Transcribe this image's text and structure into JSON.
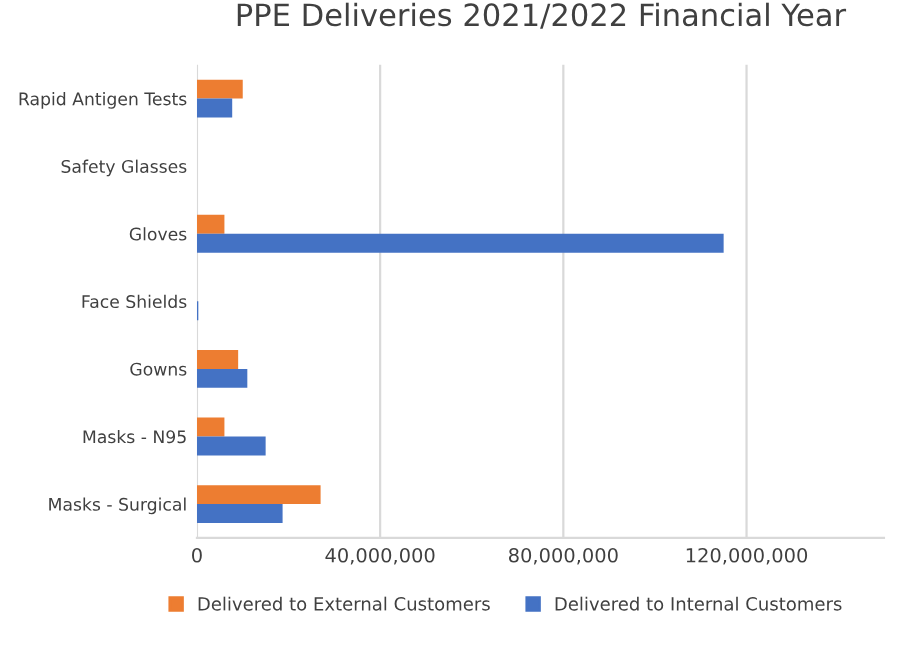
{
  "chart_data": {
    "type": "bar",
    "orientation": "horizontal",
    "title": "PPE Deliveries 2021/2022 Financial Year",
    "categories": [
      "Rapid Antigen Tests",
      "Safety Glasses",
      "Gloves",
      "Face Shields",
      "Gowns",
      "Masks - N95",
      "Masks - Surgical"
    ],
    "series": [
      {
        "name": "Delivered to External Customers",
        "color": "#ed7d31",
        "values": [
          10000000,
          0,
          6000000,
          0,
          9000000,
          6000000,
          27000000
        ]
      },
      {
        "name": "Delivered to Internal Customers",
        "color": "#4472c4",
        "values": [
          7700000,
          0,
          115000000,
          300000,
          11000000,
          15000000,
          18700000
        ]
      }
    ],
    "xlim": [
      0,
      150000000
    ],
    "xticks": [
      {
        "value": 0,
        "label": "0"
      },
      {
        "value": 40000000,
        "label": "40,000,000"
      },
      {
        "value": 80000000,
        "label": "80,000,000"
      },
      {
        "value": 120000000,
        "label": "120,000,000"
      }
    ],
    "grid": "x",
    "legend": "bottom"
  }
}
